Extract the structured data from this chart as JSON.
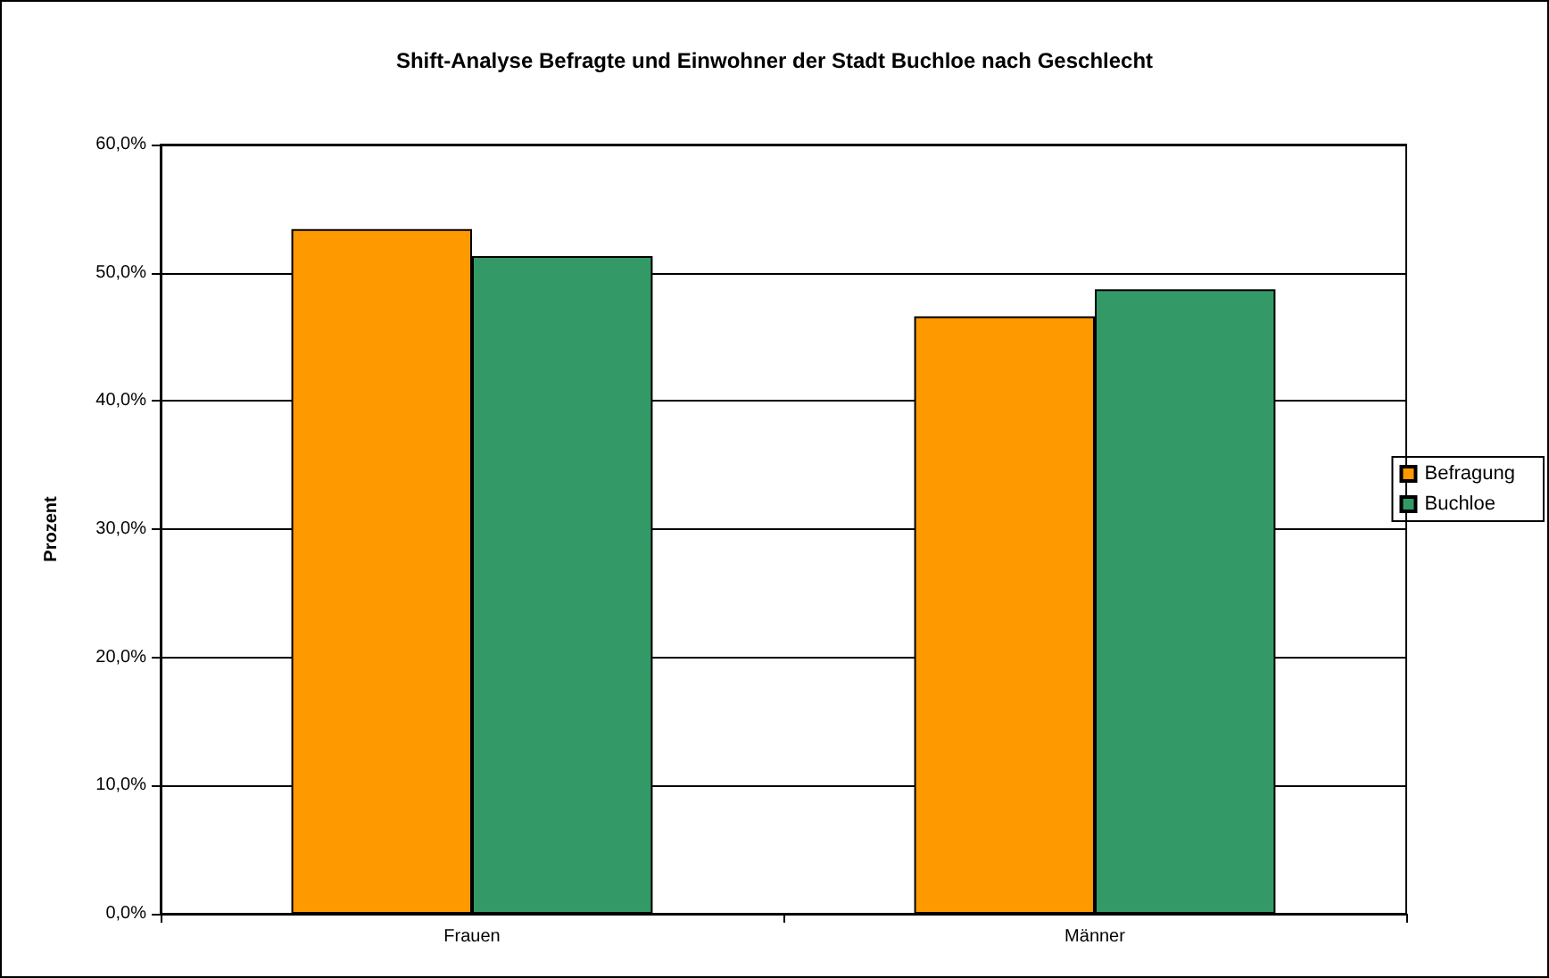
{
  "chart_data": {
    "type": "bar",
    "title": "Shift-Analyse Befragte und Einwohner der Stadt Buchloe nach Geschlecht",
    "ylabel": "Prozent",
    "categories": [
      "Frauen",
      "Männer"
    ],
    "series": [
      {
        "name": "Befragung",
        "color": "#ff9900",
        "values": [
          53.4,
          46.6
        ]
      },
      {
        "name": "Buchloe",
        "color": "#339966",
        "values": [
          51.3,
          48.7
        ]
      }
    ],
    "ylim": [
      0,
      60
    ],
    "yticks": [
      {
        "value": 0,
        "label": "0,0%"
      },
      {
        "value": 10,
        "label": "10,0%"
      },
      {
        "value": 20,
        "label": "20,0%"
      },
      {
        "value": 30,
        "label": "30,0%"
      },
      {
        "value": 40,
        "label": "40,0%"
      },
      {
        "value": 50,
        "label": "50,0%"
      },
      {
        "value": 60,
        "label": "60,0%"
      }
    ],
    "grid": "y",
    "legend": "right"
  }
}
